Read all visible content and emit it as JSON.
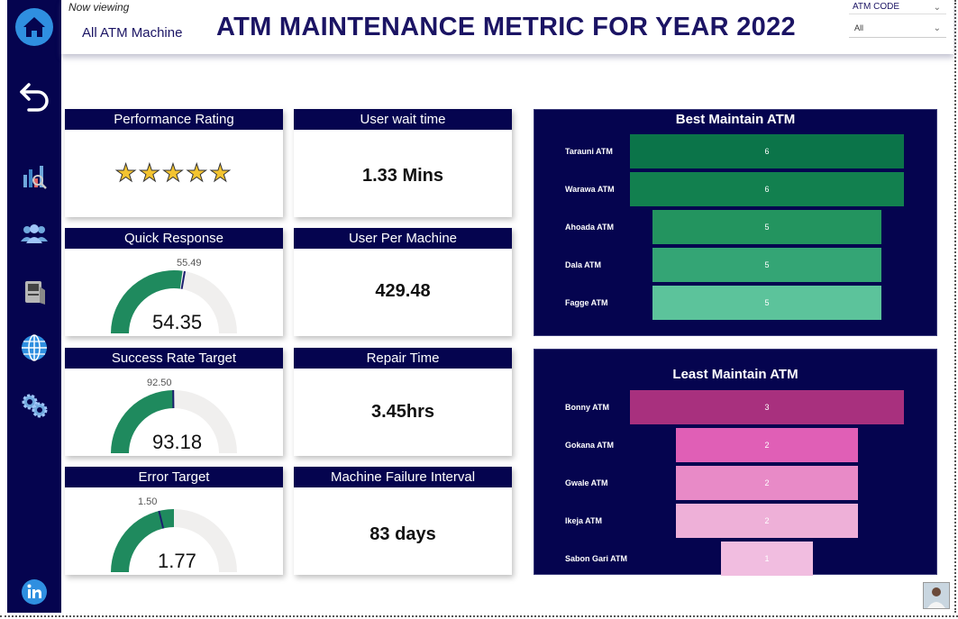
{
  "header": {
    "now_viewing": "Now viewing",
    "scope": "All ATM Machine",
    "title": "ATM MAINTENANCE METRIC FOR YEAR 2022",
    "slicer_label": "ATM CODE",
    "slicer_value": "All"
  },
  "sidebar": {
    "icons": [
      "home-icon",
      "back-arrow-icon",
      "analytics-icon",
      "users-icon",
      "atm-icon",
      "globe-icon",
      "settings-icon",
      "linkedin-icon"
    ]
  },
  "kpis": {
    "performance": {
      "title": "Performance Rating",
      "stars": "★★★★★",
      "rating": 5,
      "max": 5
    },
    "wait_time": {
      "title": "User wait time",
      "value": "1.33 Mins"
    },
    "quick_response": {
      "title": "Quick Response",
      "value": "54.35",
      "target": "55.49",
      "value_num": 54.35,
      "target_num": 55.49,
      "max": 100
    },
    "user_per_machine": {
      "title": "User Per Machine",
      "value": "429.48"
    },
    "success_rate": {
      "title": "Success Rate Target",
      "value": "93.18",
      "target": "92.50",
      "value_num": 93.18,
      "target_num": 92.5,
      "max": 186.36
    },
    "repair_time": {
      "title": "Repair Time",
      "value": "3.45hrs"
    },
    "error_target": {
      "title": "Error Target",
      "value": "1.77",
      "target": "1.50",
      "value_num": 1.77,
      "target_num": 1.5,
      "max": 3.54
    },
    "failure_interval": {
      "title": "Machine Failure Interval",
      "value": "83 days"
    }
  },
  "colors": {
    "navy": "#05044f",
    "gauge_fill": "#1f8a5e",
    "gauge_bg": "#f0efee",
    "gauge_needle": "#1b1f6e"
  },
  "chart_data": [
    {
      "type": "bar",
      "title": "Best Maintain ATM",
      "categories": [
        "Tarauni ATM",
        "Warawa ATM",
        "Ahoada ATM",
        "Dala ATM",
        "Fagge ATM"
      ],
      "values": [
        6,
        6,
        5,
        5,
        5
      ],
      "value_labels": [
        "6",
        "6",
        "5",
        "5",
        "5"
      ],
      "colors": [
        "#0b7449",
        "#12804f",
        "#23945f",
        "#34a575",
        "#5cc39b"
      ]
    },
    {
      "type": "bar",
      "title": "Least Maintain ATM",
      "categories": [
        "Bonny ATM",
        "Gokana ATM",
        "Gwale ATM",
        "Ikeja ATM",
        "Sabon Gari ATM"
      ],
      "values": [
        3,
        2,
        2,
        2,
        1
      ],
      "value_labels": [
        "3",
        "2",
        "2",
        "2",
        "1"
      ],
      "colors": [
        "#a8307e",
        "#e05fb6",
        "#e88ac7",
        "#eeb0d8",
        "#f1bde0"
      ]
    }
  ]
}
